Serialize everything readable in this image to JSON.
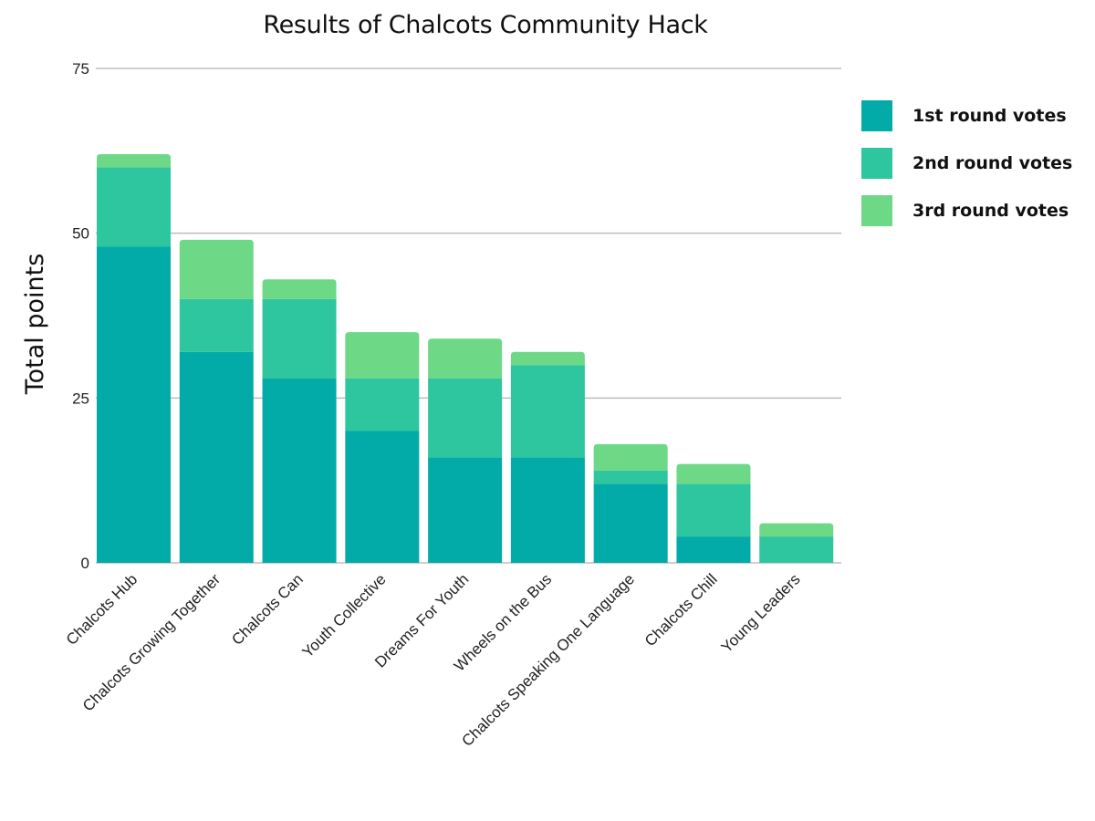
{
  "chart_data": {
    "type": "bar",
    "stacked": true,
    "title": "Results of Chalcots Community Hack",
    "ylabel": "Total points",
    "xlabel": "",
    "ylim": [
      0,
      75
    ],
    "yticks": [
      0,
      25,
      50,
      75
    ],
    "grid": true,
    "legend_position": "right",
    "categories": [
      "Chalcots Hub",
      "Chalcots Growing Together",
      "Chalcots Can",
      "Youth Collective",
      "Dreams For Youth",
      "Wheels on the Bus",
      "Chalcots Speaking One Language",
      "Chalcots Chill",
      "Young Leaders"
    ],
    "series": [
      {
        "name": "1st round votes",
        "color": "#02ABA8",
        "values": [
          48,
          32,
          28,
          20,
          16,
          16,
          12,
          4,
          0
        ]
      },
      {
        "name": "2nd round votes",
        "color": "#2DC69E",
        "values": [
          12,
          8,
          12,
          8,
          12,
          14,
          2,
          8,
          4
        ]
      },
      {
        "name": "3rd round votes",
        "color": "#6DD987",
        "values": [
          2,
          9,
          3,
          7,
          6,
          2,
          4,
          3,
          2
        ]
      }
    ]
  }
}
